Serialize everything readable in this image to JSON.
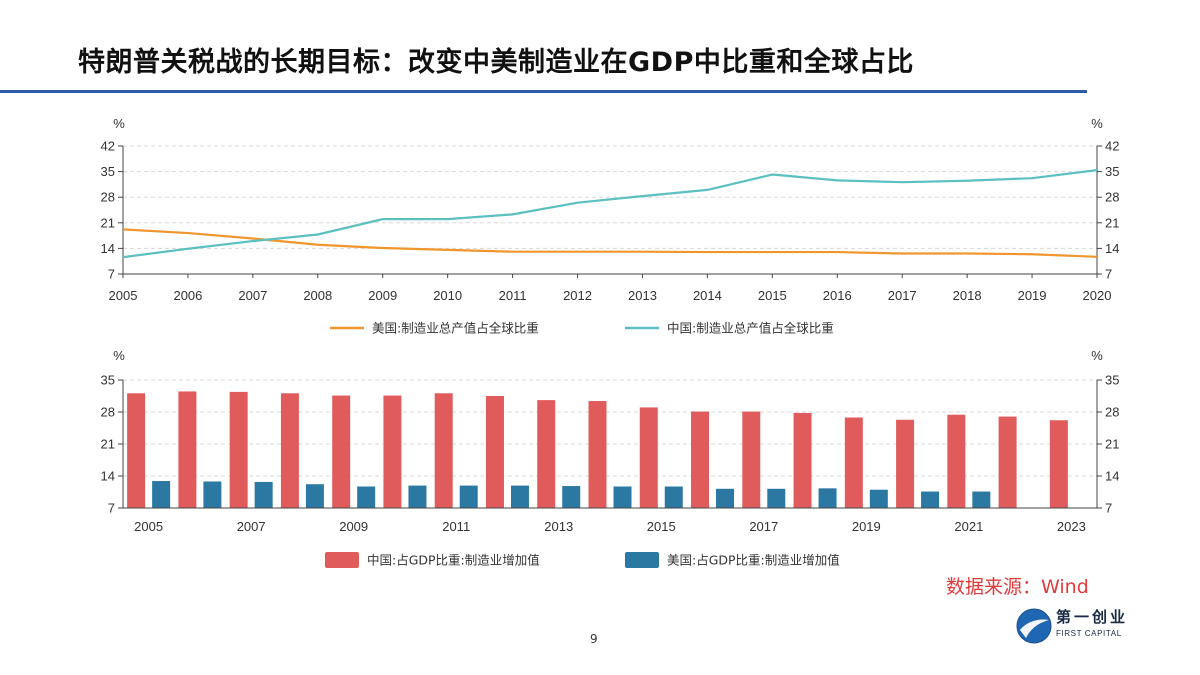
{
  "header": {
    "title": "特朗普关税战的长期目标：改变中美制造业在GDP中比重和全球占比"
  },
  "footer": {
    "source": "数据来源：Wind",
    "page_number": "9",
    "logo_cn": "第一创业",
    "logo_en": "FIRST CAPITAL"
  },
  "colors": {
    "us_line": "#f0962c",
    "cn_line": "#5cc0c0",
    "cn_bar": "#e05c5c",
    "us_bar": "#2b78a2",
    "title_rule": "#2e5aa8",
    "source_text": "#e03b3b"
  },
  "chart_data": [
    {
      "type": "line",
      "unit_left": "%",
      "unit_right": "%",
      "x": [
        "2005",
        "2006",
        "2007",
        "2008",
        "2009",
        "2010",
        "2011",
        "2012",
        "2013",
        "2014",
        "2015",
        "2016",
        "2017",
        "2018",
        "2019",
        "2020"
      ],
      "ylim": [
        7,
        42
      ],
      "yticks": [
        7,
        14,
        21,
        28,
        35,
        42
      ],
      "series": [
        {
          "name": "美国:制造业总产值占全球比重",
          "values": [
            19.2,
            18.2,
            16.7,
            15.0,
            14.1,
            13.6,
            13.1,
            13.1,
            13.1,
            13.0,
            13.0,
            13.0,
            12.6,
            12.6,
            12.4,
            11.7
          ]
        },
        {
          "name": "中国:制造业总产值占全球比重",
          "values": [
            11.6,
            13.9,
            16.0,
            17.8,
            22.0,
            22.0,
            23.3,
            26.5,
            28.3,
            30.0,
            34.2,
            32.6,
            32.1,
            32.5,
            33.2,
            35.4
          ]
        }
      ],
      "legend_position": "bottom"
    },
    {
      "type": "bar",
      "unit_left": "%",
      "unit_right": "%",
      "categories": [
        "2005",
        "2006",
        "2007",
        "2008",
        "2009",
        "2010",
        "2011",
        "2012",
        "2013",
        "2014",
        "2015",
        "2016",
        "2017",
        "2018",
        "2019",
        "2020",
        "2021",
        "2022",
        "2023"
      ],
      "xtick_labels": [
        "2005",
        "2007",
        "2009",
        "2011",
        "2013",
        "2015",
        "2017",
        "2019",
        "2021",
        "2023"
      ],
      "ylim": [
        7,
        35
      ],
      "yticks": [
        7,
        14,
        21,
        28,
        35
      ],
      "series": [
        {
          "name": "中国:占GDP比重:制造业增加值",
          "values": [
            32.1,
            32.5,
            32.4,
            32.1,
            31.6,
            31.6,
            32.1,
            31.5,
            30.6,
            30.4,
            29.0,
            28.1,
            28.1,
            27.8,
            26.8,
            26.3,
            27.4,
            27.0,
            26.2
          ]
        },
        {
          "name": "美国:占GDP比重:制造业增加值",
          "values": [
            12.9,
            12.8,
            12.7,
            12.2,
            11.7,
            11.9,
            11.9,
            11.9,
            11.8,
            11.7,
            11.7,
            11.2,
            11.2,
            11.3,
            11.0,
            10.6,
            10.6,
            null,
            null
          ]
        }
      ],
      "legend_position": "bottom"
    }
  ]
}
